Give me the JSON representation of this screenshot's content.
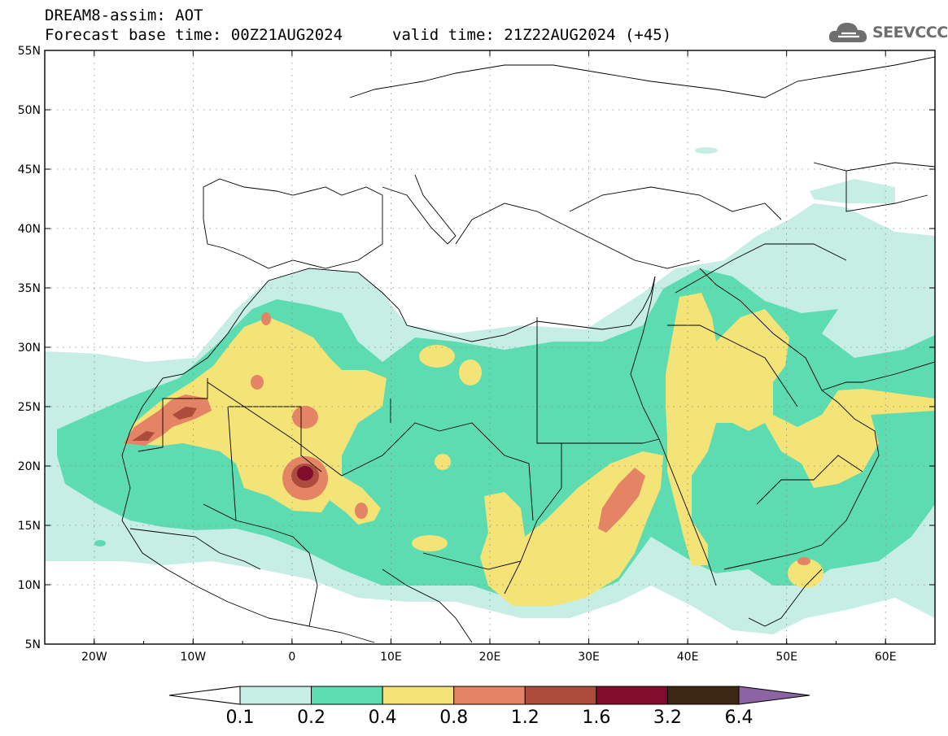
{
  "header": {
    "model_title": "DREAM8-assim: AOT",
    "forecast_base": "Forecast base time: 00Z21AUG2024",
    "valid_time": "valid time: 21Z22AUG2024 (+45)",
    "logo_text": "SEEVCCC"
  },
  "map": {
    "projection": "lat-lon",
    "lon_range": [
      -25,
      65
    ],
    "lat_range": [
      5,
      55
    ],
    "lat_labels": [
      "55N",
      "50N",
      "45N",
      "40N",
      "35N",
      "30N",
      "25N",
      "20N",
      "15N",
      "10N",
      "5N"
    ],
    "lon_labels": [
      "20W",
      "10W",
      "0",
      "10E",
      "20E",
      "30E",
      "40E",
      "50E",
      "60E"
    ],
    "grid": "dotted",
    "land_color": "#ffffff",
    "border_color": "#000000"
  },
  "colorbar": {
    "labels": [
      "0.1",
      "0.2",
      "0.4",
      "0.8",
      "1.2",
      "1.6",
      "3.2",
      "6.4"
    ],
    "colors": [
      "#ffffff",
      "#c6eee5",
      "#5edcb1",
      "#f4e377",
      "#e48464",
      "#ac4c3c",
      "#820c2c",
      "#3c2814",
      "#8c64a4"
    ]
  }
}
